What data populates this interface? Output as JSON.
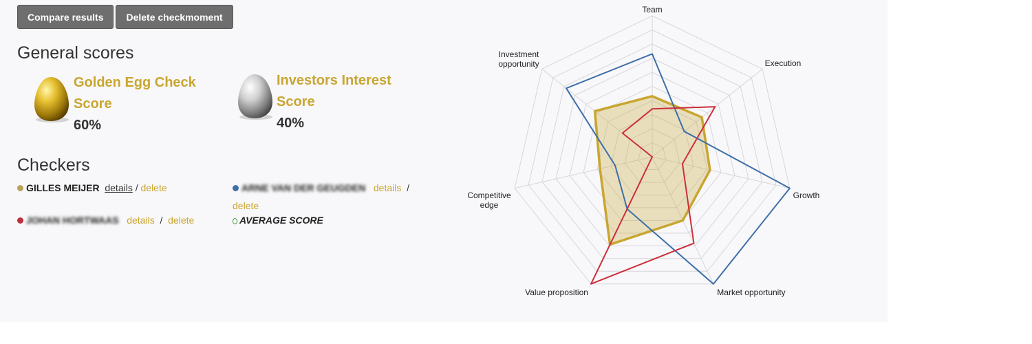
{
  "toolbar": {
    "compare_label": "Compare results",
    "delete_label": "Delete checkmoment"
  },
  "general": {
    "title": "General scores",
    "golden": {
      "title_line1": "Golden Egg Check",
      "title_line2": "Score",
      "value": "60%"
    },
    "investors": {
      "title_line1": "Investors Interest",
      "title_line2": "Score",
      "value": "40%"
    }
  },
  "checkers": {
    "title": "Checkers",
    "items": [
      {
        "name": "GILLES MEIJER",
        "color": "#b8a25a",
        "details": "details",
        "delete": "delete",
        "blurred": false
      },
      {
        "name": "ARNE VAN DER GEUGDEN",
        "color": "#3f6fa6",
        "details": "details",
        "delete": "delete",
        "blurred": true
      },
      {
        "name": "JOHAN HORTWAAS",
        "color": "#c0303a",
        "details": "details",
        "delete": "delete",
        "blurred": true
      }
    ],
    "average_label": "AVERAGE SCORE",
    "separator": "/"
  },
  "chart_data": {
    "type": "radar",
    "axes": [
      "Team",
      "Execution",
      "Growth",
      "Market opportunity",
      "Value proposition",
      "Competitive edge",
      "Investment opportunity"
    ],
    "rmax": 100,
    "grid_levels": 10,
    "series": [
      {
        "color": "#c8a630",
        "fill": "rgba(200,166,48,0.30)",
        "values": [
          43,
          45,
          42,
          50,
          69,
          38,
          52
        ]
      },
      {
        "color": "#3d6fa8",
        "values": [
          73,
          29,
          100,
          100,
          41,
          27,
          78
        ]
      },
      {
        "color": "#cc2e3a",
        "values": [
          34,
          57,
          22,
          68,
          100,
          0,
          27
        ]
      }
    ]
  }
}
